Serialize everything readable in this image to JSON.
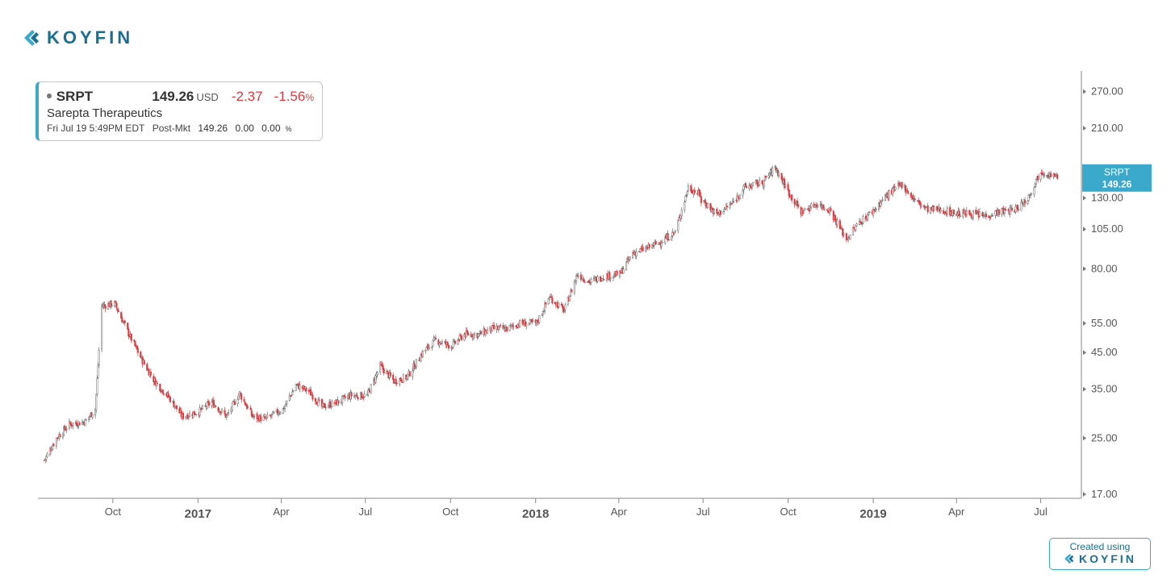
{
  "brand": {
    "name": "KOYFIN"
  },
  "quote": {
    "ticker": "SRPT",
    "price": "149.26",
    "currency": "USD",
    "change": "-2.37",
    "change_pct": "-1.56",
    "pct_sign": "%",
    "company": "Sarepta Therapeutics",
    "datetime": "Fri Jul 19 5:49PM EDT",
    "session": "Post-Mkt",
    "post_price": "149.26",
    "post_change": "0.00",
    "post_pct": "0.00"
  },
  "footer": {
    "created_label": "Created using",
    "brand": "KOYFIN"
  },
  "colors": {
    "up": "#666666",
    "down": "#e0393e",
    "accent": "#3aa9cc",
    "brand": "#1b6f93"
  },
  "chart_data": {
    "type": "candlestick",
    "scale": "log",
    "ylim": [
      17,
      320
    ],
    "y_ticks": [
      "270.00",
      "210.00",
      "130.00",
      "105.00",
      "80.00",
      "55.00",
      "45.00",
      "35.00",
      "25.00",
      "17.00"
    ],
    "x_ticks": [
      {
        "label": "Oct",
        "year": false
      },
      {
        "label": "2017",
        "year": true
      },
      {
        "label": "Apr",
        "year": false
      },
      {
        "label": "Jul",
        "year": false
      },
      {
        "label": "Oct",
        "year": false
      },
      {
        "label": "2018",
        "year": true
      },
      {
        "label": "Apr",
        "year": false
      },
      {
        "label": "Jul",
        "year": false
      },
      {
        "label": "Oct",
        "year": false
      },
      {
        "label": "2019",
        "year": true
      },
      {
        "label": "Apr",
        "year": false
      },
      {
        "label": "Jul",
        "year": false
      }
    ],
    "last_label": {
      "ticker": "SRPT",
      "value": "149.26"
    },
    "series": [
      {
        "name": "SRPT",
        "dates": [
          "2016-07-19",
          "2016-08-01",
          "2016-08-15",
          "2016-09-01",
          "2016-09-12",
          "2016-09-19",
          "2016-10-03",
          "2016-10-17",
          "2016-11-01",
          "2016-11-15",
          "2016-12-01",
          "2016-12-15",
          "2017-01-02",
          "2017-01-16",
          "2017-02-01",
          "2017-02-15",
          "2017-03-01",
          "2017-03-15",
          "2017-04-03",
          "2017-04-17",
          "2017-05-01",
          "2017-05-15",
          "2017-06-01",
          "2017-06-15",
          "2017-07-03",
          "2017-07-17",
          "2017-08-01",
          "2017-08-15",
          "2017-09-01",
          "2017-09-15",
          "2017-10-02",
          "2017-10-16",
          "2017-11-01",
          "2017-11-15",
          "2017-12-01",
          "2017-12-15",
          "2018-01-02",
          "2018-01-16",
          "2018-02-01",
          "2018-02-15",
          "2018-03-01",
          "2018-03-15",
          "2018-04-02",
          "2018-04-16",
          "2018-05-01",
          "2018-05-15",
          "2018-06-01",
          "2018-06-15",
          "2018-06-28",
          "2018-07-02",
          "2018-07-16",
          "2018-08-01",
          "2018-08-15",
          "2018-09-04",
          "2018-09-17",
          "2018-10-01",
          "2018-10-15",
          "2018-11-01",
          "2018-11-15",
          "2018-12-03",
          "2018-12-17",
          "2019-01-02",
          "2019-01-15",
          "2019-02-01",
          "2019-02-15",
          "2019-03-01",
          "2019-03-15",
          "2019-04-01",
          "2019-04-15",
          "2019-05-01",
          "2019-05-15",
          "2019-06-03",
          "2019-06-17",
          "2019-07-01",
          "2019-07-19"
        ],
        "close": [
          21.5,
          25.0,
          27.5,
          28.0,
          30.5,
          62.0,
          63.0,
          52.0,
          43.0,
          37.0,
          33.0,
          29.0,
          30.0,
          32.0,
          29.0,
          34.0,
          29.0,
          28.5,
          30.5,
          36.0,
          34.5,
          31.0,
          32.0,
          33.5,
          33.5,
          41.0,
          37.0,
          38.0,
          45.0,
          49.0,
          47.0,
          51.0,
          51.0,
          53.0,
          53.0,
          55.0,
          55.0,
          66.0,
          60.0,
          77.0,
          73.0,
          76.0,
          77.0,
          89.0,
          92.0,
          96.0,
          103.0,
          140.0,
          133.0,
          127.0,
          116.0,
          125.0,
          140.0,
          145.0,
          161.0,
          136.0,
          118.0,
          125.0,
          120.0,
          98.0,
          110.0,
          120.0,
          132.0,
          143.0,
          128.0,
          120.0,
          120.0,
          117.0,
          117.0,
          115.0,
          118.0,
          120.0,
          130.0,
          157.0,
          149.26
        ]
      }
    ]
  }
}
